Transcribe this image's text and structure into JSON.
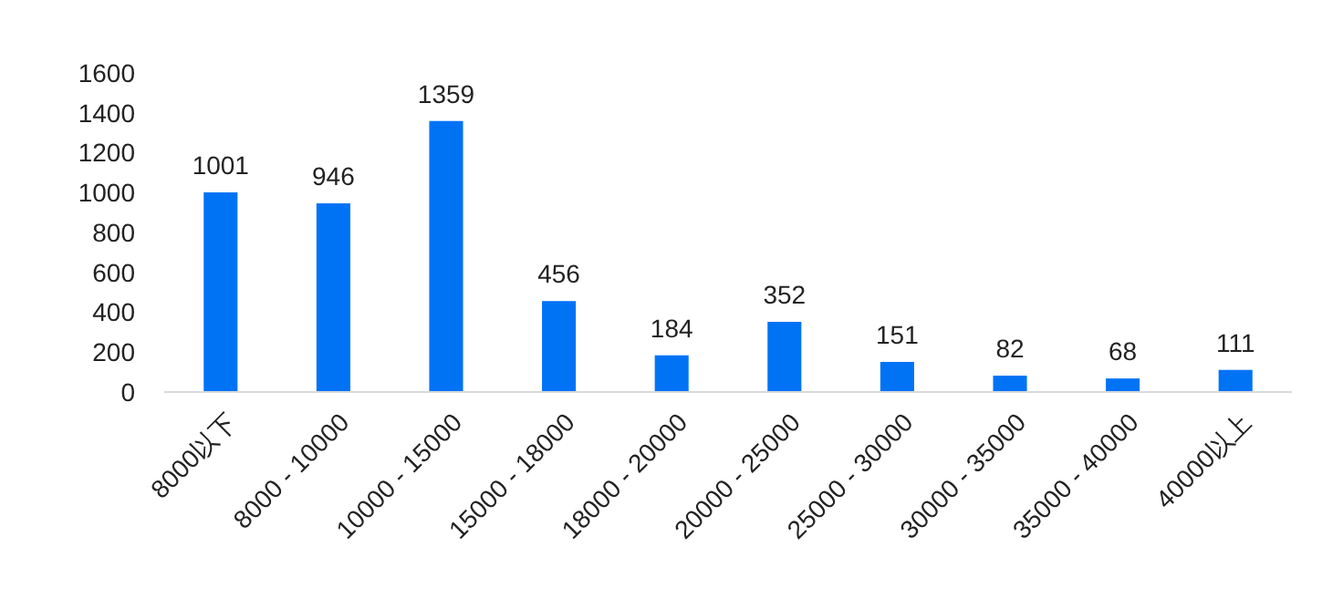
{
  "chart_data": {
    "type": "bar",
    "categories": [
      "8000以下",
      "8000 - 10000",
      "10000 - 15000",
      "15000 - 18000",
      "18000 - 20000",
      "20000 - 25000",
      "25000 - 30000",
      "30000 - 35000",
      "35000 - 40000",
      "40000以上"
    ],
    "values": [
      1001,
      946,
      1359,
      456,
      184,
      352,
      151,
      82,
      68,
      111
    ],
    "color": "#0073f5",
    "ylim": [
      0,
      1600
    ],
    "yticks": [
      0,
      200,
      400,
      600,
      800,
      1000,
      1200,
      1400,
      1600
    ],
    "grid": false,
    "data_labels": true
  }
}
